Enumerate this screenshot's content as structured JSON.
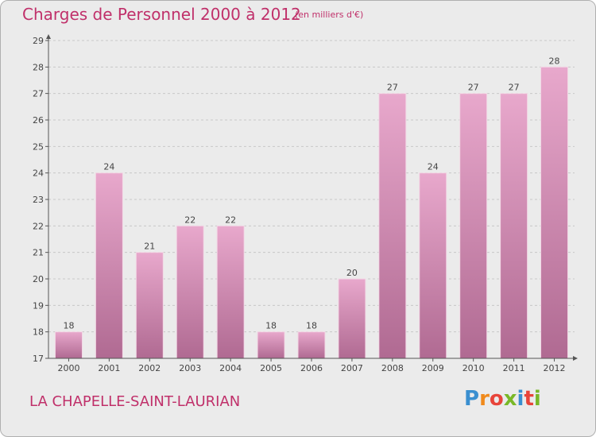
{
  "header": {
    "title": "Charges de Personnel 2000 à 2012",
    "unit_note": "(en milliers d'€)"
  },
  "footer": {
    "commune": "LA CHAPELLE-SAINT-LAURIAN",
    "logo_text": "Proxiti",
    "logo_colors": [
      "#3a8fd0",
      "#f08a1c",
      "#e8443a",
      "#79b828",
      "#3a8fd0",
      "#e8443a",
      "#79b828"
    ]
  },
  "colors": {
    "accent": "#c0306a",
    "bar_top": "#e8a8cc",
    "bar_bottom": "#b06a92",
    "background": "#ebebeb"
  },
  "chart_data": {
    "type": "bar",
    "categories": [
      "2000",
      "2001",
      "2002",
      "2003",
      "2004",
      "2005",
      "2006",
      "2007",
      "2008",
      "2009",
      "2010",
      "2011",
      "2012"
    ],
    "values": [
      18,
      24,
      21,
      22,
      22,
      18,
      18,
      20,
      27,
      24,
      27,
      27,
      28
    ],
    "y_ticks": [
      17,
      18,
      19,
      20,
      21,
      22,
      23,
      24,
      25,
      26,
      27,
      28,
      29
    ],
    "ylim": [
      17,
      29
    ],
    "grid": "horizontal dashed",
    "legend": "none"
  }
}
